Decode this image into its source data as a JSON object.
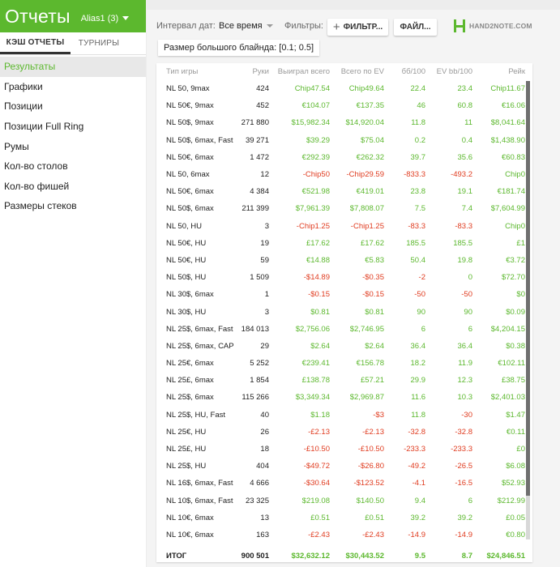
{
  "app": {
    "title": "Отчеты",
    "alias": "Alias1 (3)"
  },
  "left_tabs": [
    {
      "label": "КЭШ ОТЧЕТЫ"
    },
    {
      "label": "ТУРНИРЫ"
    }
  ],
  "nav": [
    {
      "label": "Результаты"
    },
    {
      "label": "Графики"
    },
    {
      "label": "Позиции"
    },
    {
      "label": "Позиции Full Ring"
    },
    {
      "label": "Румы"
    },
    {
      "label": "Кол-во столов"
    },
    {
      "label": "Кол-во фишей"
    },
    {
      "label": "Размеры стеков"
    }
  ],
  "filterbar": {
    "interval_label": "Интервал дат:",
    "interval_value": "Все время",
    "filters_label": "Фильтры:",
    "filter_button": "ФИЛЬТР...",
    "file_button": "ФАЙЛ...",
    "logo_text": "HAND2NOTE.COM"
  },
  "chip": "Размер большого блайнда: [0.1; 0.5]",
  "table": {
    "headers": [
      "Тип игры",
      "Руки",
      "Выиграл всего",
      "Всего по EV",
      "бб/100",
      "EV bb/100",
      "Рейк"
    ],
    "rows": [
      [
        "NL 50, 9max",
        "424",
        "Chip47.54",
        "Chip49.64",
        "22.4",
        "23.4",
        "Chip11.67"
      ],
      [
        "NL 50€, 9max",
        "452",
        "€104.07",
        "€137.35",
        "46",
        "60.8",
        "€16.06"
      ],
      [
        "NL 50$, 9max",
        "271 880",
        "$15,982.34",
        "$14,920.04",
        "11.8",
        "11",
        "$8,041.64"
      ],
      [
        "NL 50$, 6max, Fast",
        "39 271",
        "$39.29",
        "$75.04",
        "0.2",
        "0.4",
        "$1,438.90"
      ],
      [
        "NL 50€, 6max",
        "1 472",
        "€292.39",
        "€262.32",
        "39.7",
        "35.6",
        "€60.83"
      ],
      [
        "NL 50, 6max",
        "12",
        "-Chip50",
        "-Chip29.59",
        "-833.3",
        "-493.2",
        "Chip0"
      ],
      [
        "NL 50€, 6max",
        "4 384",
        "€521.98",
        "€419.01",
        "23.8",
        "19.1",
        "€181.74"
      ],
      [
        "NL 50$, 6max",
        "211 399",
        "$7,961.39",
        "$7,808.07",
        "7.5",
        "7.4",
        "$7,604.99"
      ],
      [
        "NL 50, HU",
        "3",
        "-Chip1.25",
        "-Chip1.25",
        "-83.3",
        "-83.3",
        "Chip0"
      ],
      [
        "NL 50€, HU",
        "19",
        "£17.62",
        "£17.62",
        "185.5",
        "185.5",
        "£1"
      ],
      [
        "NL 50€, HU",
        "59",
        "€14.88",
        "€5.83",
        "50.4",
        "19.8",
        "€3.72"
      ],
      [
        "NL 50$, HU",
        "1 509",
        "-$14.89",
        "-$0.35",
        "-2",
        "0",
        "$72.70"
      ],
      [
        "NL 30$, 6max",
        "1",
        "-$0.15",
        "-$0.15",
        "-50",
        "-50",
        "$0"
      ],
      [
        "NL 30$, HU",
        "3",
        "$0.81",
        "$0.81",
        "90",
        "90",
        "$0.09"
      ],
      [
        "NL 25$, 6max, Fast",
        "184 013",
        "$2,756.06",
        "$2,746.95",
        "6",
        "6",
        "$4,204.15"
      ],
      [
        "NL 25$, 6max, CAP",
        "29",
        "$2.64",
        "$2.64",
        "36.4",
        "36.4",
        "$0.38"
      ],
      [
        "NL 25€, 6max",
        "5 252",
        "€239.41",
        "€156.78",
        "18.2",
        "11.9",
        "€102.11"
      ],
      [
        "NL 25£, 6max",
        "1 854",
        "£138.78",
        "£57.21",
        "29.9",
        "12.3",
        "£38.75"
      ],
      [
        "NL 25$, 6max",
        "115 266",
        "$3,349.34",
        "$2,969.87",
        "11.6",
        "10.3",
        "$2,401.03"
      ],
      [
        "NL 25$, HU, Fast",
        "40",
        "$1.18",
        "-$3",
        "11.8",
        "-30",
        "$1.47"
      ],
      [
        "NL 25€, HU",
        "26",
        "-£2.13",
        "-£2.13",
        "-32.8",
        "-32.8",
        "€0.11"
      ],
      [
        "NL 25£, HU",
        "18",
        "-£10.50",
        "-£10.50",
        "-233.3",
        "-233.3",
        "£0"
      ],
      [
        "NL 25$, HU",
        "404",
        "-$49.72",
        "-$26.80",
        "-49.2",
        "-26.5",
        "$6.08"
      ],
      [
        "NL 16$, 6max, Fast",
        "4 666",
        "-$30.64",
        "-$123.52",
        "-4.1",
        "-16.5",
        "$52.93"
      ],
      [
        "NL 10$, 6max, Fast",
        "23 325",
        "$219.08",
        "$140.50",
        "9.4",
        "6",
        "$212.99"
      ],
      [
        "NL 10€, 6max",
        "13",
        "£0.51",
        "£0.51",
        "39.2",
        "39.2",
        "£0.05"
      ],
      [
        "NL 10€, 6max",
        "163",
        "-£2.43",
        "-£2.43",
        "-14.9",
        "-14.9",
        "€0.80"
      ]
    ],
    "total": [
      "ИТОГ",
      "900 501",
      "$32,632.12",
      "$30,443.52",
      "9.5",
      "8.7",
      "$24,846.51"
    ]
  },
  "colors": {
    "accent": "#5cb82e",
    "negative": "#e03c20"
  }
}
